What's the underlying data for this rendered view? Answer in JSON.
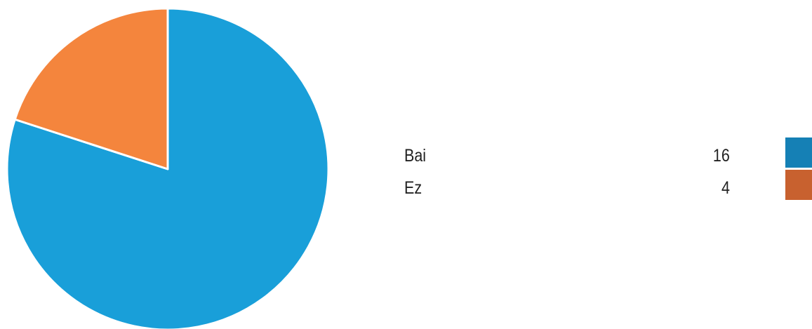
{
  "chart_data": {
    "type": "pie",
    "categories": [
      "Bai",
      "Ez"
    ],
    "values": [
      16,
      4
    ],
    "colors": [
      "#199fd9",
      "#f4853d"
    ],
    "legend_swatch_colors": [
      "#1580b5",
      "#c8612f"
    ],
    "legend": "right"
  }
}
